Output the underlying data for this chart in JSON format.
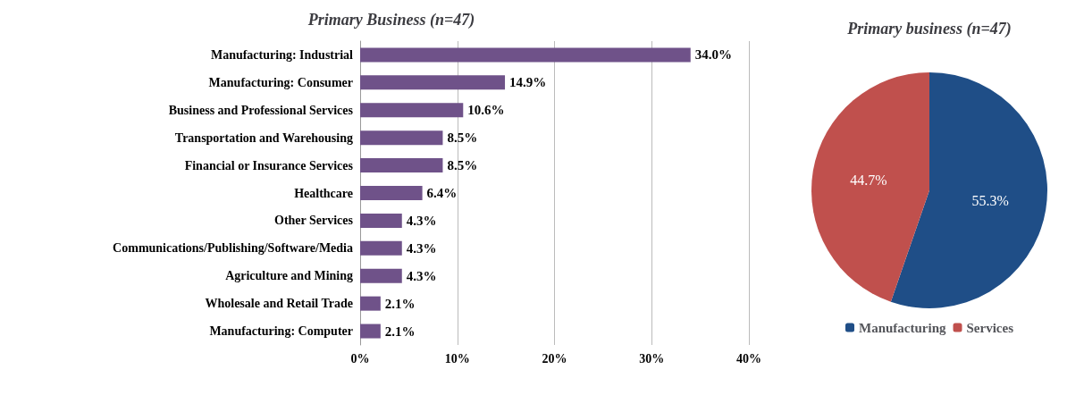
{
  "chart_data": [
    {
      "type": "bar",
      "title": "Primary Business (n=47)",
      "orientation": "horizontal",
      "categories": [
        "Manufacturing: Industrial",
        "Manufacturing: Consumer",
        "Business and Professional Services",
        "Transportation and Warehousing",
        "Financial or Insurance Services",
        "Healthcare",
        "Other Services",
        "Communications/Publishing/Software/Media",
        "Agriculture and Mining",
        "Wholesale and Retail Trade",
        "Manufacturing: Computer"
      ],
      "values": [
        34.0,
        14.9,
        10.6,
        8.5,
        8.5,
        6.4,
        4.3,
        4.3,
        4.3,
        2.1,
        2.1
      ],
      "value_labels": [
        "34.0%",
        "14.9%",
        "10.6%",
        "8.5%",
        "8.5%",
        "6.4%",
        "4.3%",
        "4.3%",
        "4.3%",
        "2.1%",
        "2.1%"
      ],
      "color": "#6f5289",
      "xlim": [
        0,
        40
      ],
      "xticks": [
        {
          "value": 0,
          "label": "0%"
        },
        {
          "value": 10,
          "label": "10%"
        },
        {
          "value": 20,
          "label": "20%"
        },
        {
          "value": 30,
          "label": "30%"
        },
        {
          "value": 40,
          "label": "40%"
        }
      ],
      "grid": "x",
      "legend": false
    },
    {
      "type": "pie",
      "title": "Primary business (n=47)",
      "categories": [
        "Manufacturing",
        "Services"
      ],
      "values": [
        55.3,
        44.7
      ],
      "colors": [
        "#1f4e87",
        "#c0504d"
      ],
      "value_labels": [
        "55.3%",
        "44.7%"
      ],
      "legend": "bottom"
    }
  ]
}
